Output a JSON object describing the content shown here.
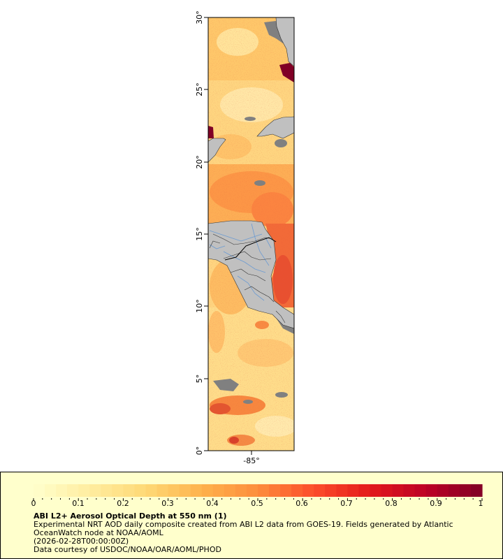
{
  "map": {
    "lat_axis_labels": [
      "30°",
      "25°",
      "20°",
      "15°",
      "10°",
      "5°",
      "0°"
    ],
    "lon_axis_labels": [
      "-85°"
    ],
    "colors": {
      "land": "#c0c0c0",
      "no_data": "#808080",
      "coast_border": "#333333",
      "rivers": "#6c9bd2",
      "frame": "#000000"
    }
  },
  "legend": {
    "title": "ABI L2+ Aerosol Optical Depth at 550 nm (1)",
    "description": "Experimental NRT AOD daily composite created from ABI L2 data from GOES-19. Fields generated by Atlantic OceanWatch node at NOAA/AOML",
    "timestamp": "(2026-02-28T00:00:00Z)",
    "credit": "Data courtesy of USDOC/NOAA/OAR/AOML/PHOD",
    "tick_labels": [
      "0",
      "0.1",
      "0.2",
      "0.3",
      "0.4",
      "0.5",
      "0.6",
      "0.7",
      "0.8",
      "0.9",
      "1"
    ],
    "background": "#ffffcc",
    "colorscale": [
      "#ffffcc",
      "#ffeda0",
      "#fed976",
      "#feb24c",
      "#fd8d3c",
      "#fc4e2a",
      "#e31a1c",
      "#bd0026",
      "#800026"
    ]
  }
}
